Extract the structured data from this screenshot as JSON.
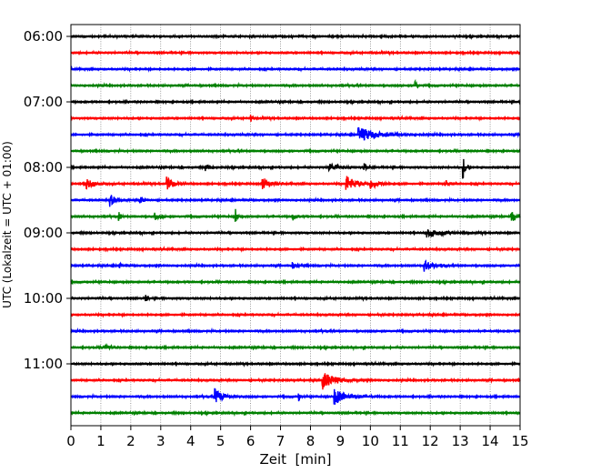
{
  "chart_data": {
    "type": "line",
    "title": "",
    "xlabel": "Zeit  [min]",
    "ylabel": "UTC (Lokalzeit = UTC + 01:00)",
    "xlim": [
      0,
      15
    ],
    "x_ticks": [
      "0",
      "1",
      "2",
      "3",
      "4",
      "5",
      "6",
      "7",
      "8",
      "9",
      "10",
      "11",
      "12",
      "13",
      "14",
      "15"
    ],
    "y_ticks": [
      "06:00",
      "07:00",
      "08:00",
      "09:00",
      "10:00",
      "11:00"
    ],
    "y_range": [
      "06:00",
      "11:45"
    ],
    "trace_interval_minutes": 15,
    "grid": "vertical dotted lines at each minute",
    "trace_colors": [
      "#000000",
      "#ff0000",
      "#0000ff",
      "#008000"
    ],
    "series": [
      {
        "start": "06:00",
        "events": []
      },
      {
        "start": "06:15",
        "events": []
      },
      {
        "start": "06:30",
        "events": []
      },
      {
        "start": "06:45",
        "events": [
          {
            "x": 11.5,
            "amp": 0.35,
            "dur": 0.1
          }
        ]
      },
      {
        "start": "07:00",
        "events": []
      },
      {
        "start": "07:15",
        "events": [
          {
            "x": 6.0,
            "amp": 0.3,
            "dur": 0.1
          }
        ]
      },
      {
        "start": "07:30",
        "events": [
          {
            "x": 9.6,
            "amp": 0.45,
            "dur": 1.2
          }
        ]
      },
      {
        "start": "07:45",
        "events": []
      },
      {
        "start": "08:00",
        "events": [
          {
            "x": 4.5,
            "amp": 0.2,
            "dur": 0.3
          },
          {
            "x": 8.6,
            "amp": 0.25,
            "dur": 0.6
          },
          {
            "x": 9.8,
            "amp": 0.25,
            "dur": 0.2
          },
          {
            "x": 13.1,
            "amp": 0.7,
            "dur": 0.12
          }
        ]
      },
      {
        "start": "08:15",
        "events": [
          {
            "x": 0.5,
            "amp": 0.4,
            "dur": 0.4
          },
          {
            "x": 3.2,
            "amp": 0.4,
            "dur": 0.4
          },
          {
            "x": 6.4,
            "amp": 0.45,
            "dur": 0.4
          },
          {
            "x": 9.2,
            "amp": 0.5,
            "dur": 0.6
          },
          {
            "x": 10.0,
            "amp": 0.3,
            "dur": 0.5
          },
          {
            "x": 12.5,
            "amp": 0.35,
            "dur": 0.15
          }
        ]
      },
      {
        "start": "08:30",
        "events": [
          {
            "x": 1.3,
            "amp": 0.4,
            "dur": 0.3
          },
          {
            "x": 2.3,
            "amp": 0.3,
            "dur": 0.2
          }
        ]
      },
      {
        "start": "08:45",
        "events": [
          {
            "x": 1.6,
            "amp": 0.3,
            "dur": 0.1
          },
          {
            "x": 2.8,
            "amp": 0.2,
            "dur": 0.3
          },
          {
            "x": 5.5,
            "amp": 0.45,
            "dur": 0.1
          },
          {
            "x": 7.4,
            "amp": 0.25,
            "dur": 0.2
          },
          {
            "x": 14.7,
            "amp": 0.35,
            "dur": 0.4
          }
        ]
      },
      {
        "start": "09:00",
        "events": [
          {
            "x": 11.9,
            "amp": 0.25,
            "dur": 1.0
          }
        ]
      },
      {
        "start": "09:15",
        "events": []
      },
      {
        "start": "09:30",
        "events": [
          {
            "x": 1.6,
            "amp": 0.2,
            "dur": 0.2
          },
          {
            "x": 7.4,
            "amp": 0.2,
            "dur": 0.3
          },
          {
            "x": 11.8,
            "amp": 0.35,
            "dur": 0.6
          }
        ]
      },
      {
        "start": "09:45",
        "events": []
      },
      {
        "start": "10:00",
        "events": [
          {
            "x": 2.5,
            "amp": 0.25,
            "dur": 0.1
          }
        ]
      },
      {
        "start": "10:15",
        "events": []
      },
      {
        "start": "10:30",
        "events": []
      },
      {
        "start": "10:45",
        "events": [
          {
            "x": 1.1,
            "amp": 0.2,
            "dur": 0.3
          }
        ]
      },
      {
        "start": "11:00",
        "events": []
      },
      {
        "start": "11:15",
        "events": [
          {
            "x": 8.4,
            "amp": 0.55,
            "dur": 0.8
          }
        ]
      },
      {
        "start": "11:30",
        "events": [
          {
            "x": 4.8,
            "amp": 0.5,
            "dur": 0.5
          },
          {
            "x": 7.6,
            "amp": 0.3,
            "dur": 0.1
          },
          {
            "x": 8.8,
            "amp": 0.5,
            "dur": 0.8
          }
        ]
      },
      {
        "start": "11:45",
        "events": []
      }
    ]
  }
}
